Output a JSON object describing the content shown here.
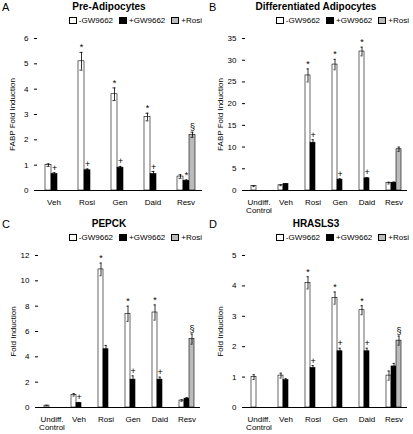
{
  "chart_data": [
    {
      "type": "bar",
      "panel_label": "A",
      "title": "Pre-Adipocytes",
      "ylabel": "FABP Fold Induction",
      "categories": [
        "Veh",
        "Rosi",
        "Gen",
        "Daid",
        "Resv"
      ],
      "series": [
        {
          "name": "-GW9662",
          "color": "#ffffff",
          "values": [
            1.0,
            5.1,
            3.8,
            2.9,
            0.55
          ],
          "errors": [
            0.05,
            0.35,
            0.25,
            0.15,
            0.07
          ],
          "annotations": [
            null,
            "*",
            "*",
            "*",
            null
          ]
        },
        {
          "name": "+GW9662",
          "color": "#000000",
          "values": [
            0.65,
            0.8,
            0.9,
            0.65,
            0.38
          ],
          "errors": [
            0.05,
            0.05,
            0.05,
            0.1,
            0.04
          ],
          "annotations": [
            "+",
            "+",
            "+",
            "+",
            "*"
          ]
        },
        {
          "name": "+Rosi",
          "color": "#bbbbbb",
          "values": [
            null,
            null,
            null,
            null,
            2.2
          ],
          "errors": [
            null,
            null,
            null,
            null,
            0.1
          ],
          "annotations": [
            null,
            null,
            null,
            null,
            "§"
          ]
        }
      ],
      "ylim": [
        0,
        6
      ],
      "yticks": [
        0,
        1,
        2,
        3,
        4,
        5,
        6
      ],
      "legend": "upper right"
    },
    {
      "type": "bar",
      "panel_label": "B",
      "title": "Differentiated Adipocytes",
      "ylabel": "FABP Fold Induction",
      "categories": [
        "Undiff.\nControl",
        "Veh",
        "Rosi",
        "Gen",
        "Daid",
        "Resv"
      ],
      "series": [
        {
          "name": "-GW9662",
          "color": "#ffffff",
          "values": [
            1.0,
            1.2,
            26.5,
            29.0,
            32.0,
            1.7
          ],
          "errors": [
            0.1,
            0.1,
            1.5,
            1.2,
            1.0,
            0.2
          ],
          "annotations": [
            null,
            null,
            "*",
            "*",
            "*",
            null
          ]
        },
        {
          "name": "+GW9662",
          "color": "#000000",
          "values": [
            null,
            1.5,
            11.0,
            2.5,
            2.8,
            1.8
          ],
          "errors": [
            null,
            0.1,
            0.7,
            0.2,
            0.2,
            0.15
          ],
          "annotations": [
            null,
            null,
            "+",
            "+",
            "+",
            null
          ]
        },
        {
          "name": "+Rosi",
          "color": "#bbbbbb",
          "values": [
            null,
            null,
            null,
            null,
            null,
            9.5
          ],
          "errors": [
            null,
            null,
            null,
            null,
            null,
            0.5
          ],
          "annotations": [
            null,
            null,
            null,
            null,
            null,
            null
          ]
        }
      ],
      "ylim": [
        0,
        35
      ],
      "yticks": [
        0,
        5,
        10,
        15,
        20,
        25,
        30,
        35
      ],
      "legend": "upper right"
    },
    {
      "type": "bar",
      "panel_label": "C",
      "title": "PEPCK",
      "ylabel": "Fold Induction",
      "categories": [
        "Undiff.\nControl",
        "Veh",
        "Rosi",
        "Gen",
        "Daid",
        "Resv"
      ],
      "series": [
        {
          "name": "-GW9662",
          "color": "#ffffff",
          "values": [
            0.15,
            1.0,
            10.9,
            7.4,
            7.5,
            0.55
          ],
          "errors": [
            0.02,
            0.1,
            0.5,
            0.6,
            0.6,
            0.06
          ],
          "annotations": [
            null,
            null,
            "*",
            "*",
            "*",
            null
          ]
        },
        {
          "name": "+GW9662",
          "color": "#000000",
          "values": [
            null,
            0.35,
            4.6,
            2.2,
            2.2,
            0.7
          ],
          "errors": [
            null,
            0.05,
            0.3,
            0.3,
            0.2,
            0.08
          ],
          "annotations": [
            null,
            "+",
            null,
            "+",
            "+",
            null
          ]
        },
        {
          "name": "+Rosi",
          "color": "#bbbbbb",
          "values": [
            null,
            null,
            null,
            null,
            null,
            5.4
          ],
          "errors": [
            null,
            null,
            null,
            null,
            null,
            0.4
          ],
          "annotations": [
            null,
            null,
            null,
            null,
            null,
            "§"
          ]
        }
      ],
      "ylim": [
        0,
        12
      ],
      "yticks": [
        0,
        2,
        4,
        6,
        8,
        10,
        12
      ],
      "legend": "upper right"
    },
    {
      "type": "bar",
      "panel_label": "D",
      "title": "HRASLS3",
      "ylabel": "Fold Induction",
      "categories": [
        "Undiff.\nControl",
        "Veh",
        "Rosi",
        "Gen",
        "Daid",
        "Resv"
      ],
      "series": [
        {
          "name": "-GW9662",
          "color": "#ffffff",
          "values": [
            1.0,
            1.05,
            4.1,
            3.6,
            3.2,
            1.05
          ],
          "errors": [
            0.08,
            0.08,
            0.2,
            0.2,
            0.15,
            0.15
          ],
          "annotations": [
            null,
            null,
            "*",
            "*",
            "*",
            null
          ]
        },
        {
          "name": "+GW9662",
          "color": "#000000",
          "values": [
            null,
            0.9,
            1.3,
            1.85,
            1.85,
            1.35
          ],
          "errors": [
            null,
            0.05,
            0.08,
            0.1,
            0.1,
            0.1
          ],
          "annotations": [
            null,
            null,
            "+",
            "+",
            "+",
            null
          ]
        },
        {
          "name": "+Rosi",
          "color": "#bbbbbb",
          "values": [
            null,
            null,
            null,
            null,
            null,
            2.2
          ],
          "errors": [
            null,
            null,
            null,
            null,
            null,
            0.15
          ],
          "annotations": [
            null,
            null,
            null,
            null,
            null,
            "§"
          ]
        }
      ],
      "ylim": [
        0,
        5
      ],
      "yticks": [
        0,
        1,
        2,
        3,
        4,
        5
      ],
      "legend": "upper right"
    }
  ]
}
